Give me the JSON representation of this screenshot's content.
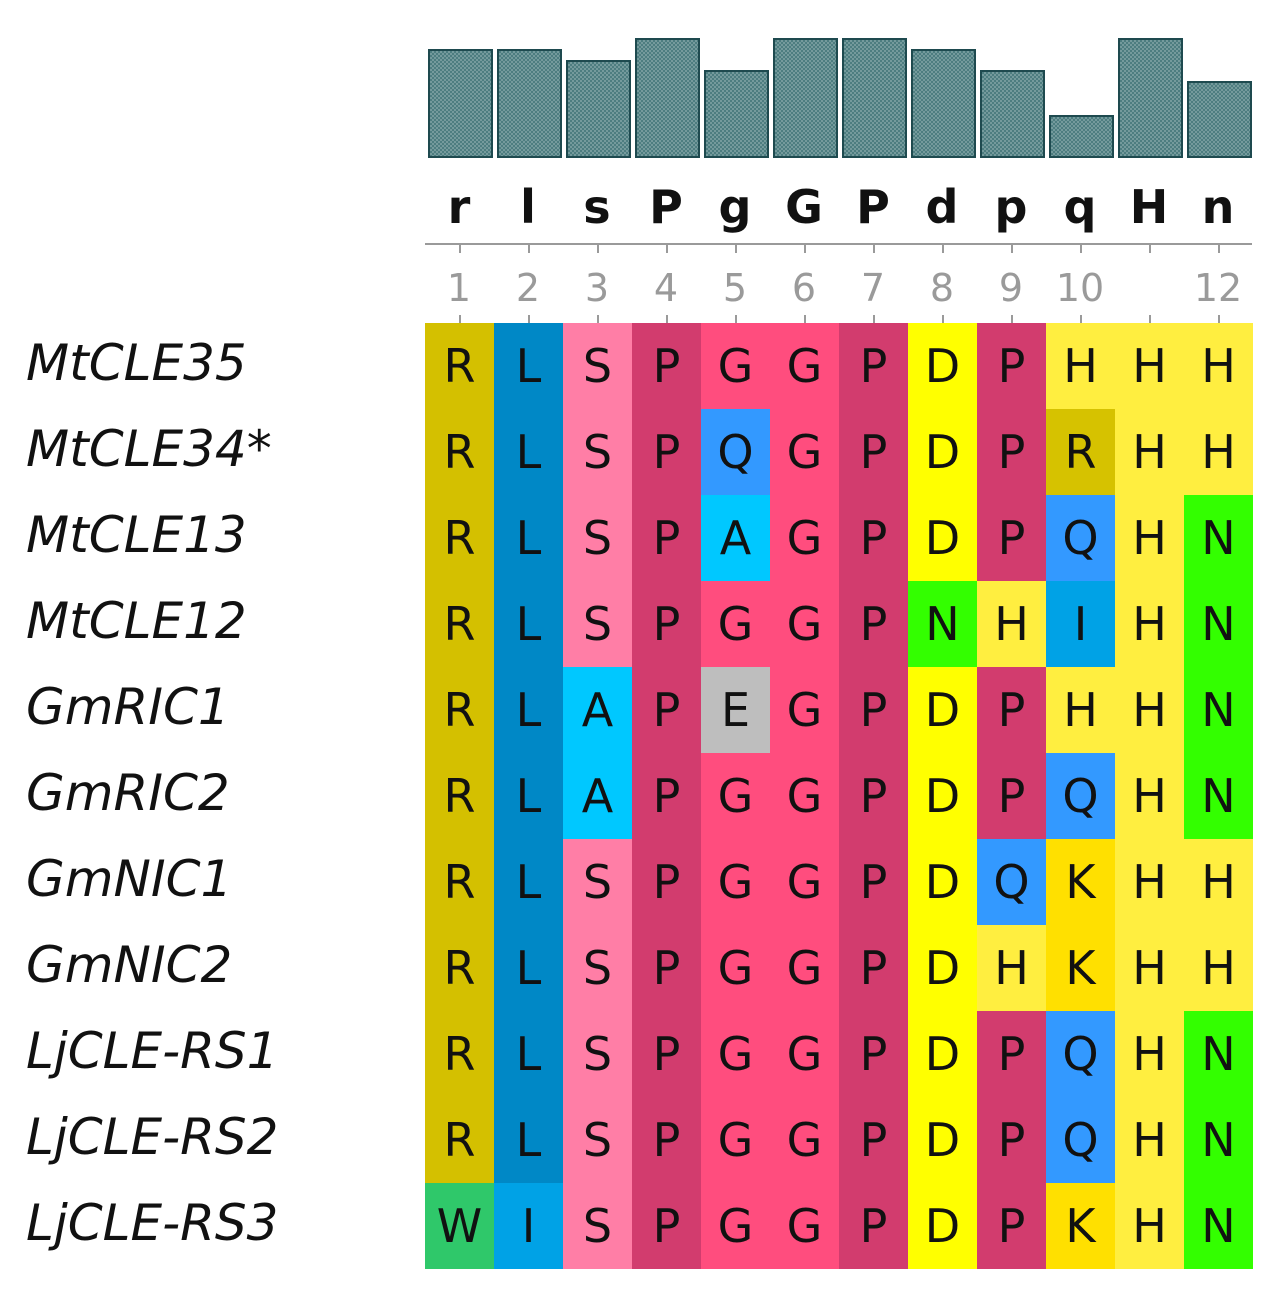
{
  "consensus": [
    "r",
    "l",
    "s",
    "P",
    "g",
    "G",
    "P",
    "d",
    "p",
    "q",
    "H",
    "n"
  ],
  "conservation": [
    0.78,
    0.78,
    0.7,
    0.86,
    0.63,
    0.86,
    0.86,
    0.78,
    0.63,
    0.31,
    0.86,
    0.55
  ],
  "positions": [
    "1",
    "2",
    "3",
    "4",
    "5",
    "6",
    "7",
    "8",
    "9",
    "10",
    "",
    "12"
  ],
  "colors": {
    "R": "#d4c000",
    "L": "#0088c6",
    "I": "#00a2e6",
    "W": "#2fc86a",
    "S": "#ff7ea6",
    "A": "#00c8ff",
    "P": "#d23c6e",
    "G": "#ff4d7e",
    "Q": "#3399ff",
    "E": "#bebebe",
    "D": "#ffff00",
    "H": "#ffee40",
    "N": "#33ff00",
    "K": "#ffe000",
    "Rq": "#d6c200",
    "bar_fill": "#4d7d80",
    "bar_border": "#1e4a4f",
    "axis": "#9a9a9a"
  },
  "sequences": [
    {
      "name": "MtCLE35",
      "residues": [
        "R",
        "L",
        "S",
        "P",
        "G",
        "G",
        "P",
        "D",
        "P",
        "H",
        "H",
        "H"
      ]
    },
    {
      "name": "MtCLE34*",
      "residues": [
        "R",
        "L",
        "S",
        "P",
        "Q",
        "G",
        "P",
        "D",
        "P",
        "R",
        "H",
        "H"
      ]
    },
    {
      "name": "MtCLE13",
      "residues": [
        "R",
        "L",
        "S",
        "P",
        "A",
        "G",
        "P",
        "D",
        "P",
        "Q",
        "H",
        "N"
      ]
    },
    {
      "name": "MtCLE12",
      "residues": [
        "R",
        "L",
        "S",
        "P",
        "G",
        "G",
        "P",
        "N",
        "H",
        "I",
        "H",
        "N"
      ]
    },
    {
      "name": "GmRIC1",
      "residues": [
        "R",
        "L",
        "A",
        "P",
        "E",
        "G",
        "P",
        "D",
        "P",
        "H",
        "H",
        "N"
      ]
    },
    {
      "name": "GmRIC2",
      "residues": [
        "R",
        "L",
        "A",
        "P",
        "G",
        "G",
        "P",
        "D",
        "P",
        "Q",
        "H",
        "N"
      ]
    },
    {
      "name": "GmNIC1",
      "residues": [
        "R",
        "L",
        "S",
        "P",
        "G",
        "G",
        "P",
        "D",
        "Q",
        "K",
        "H",
        "H"
      ]
    },
    {
      "name": "GmNIC2",
      "residues": [
        "R",
        "L",
        "S",
        "P",
        "G",
        "G",
        "P",
        "D",
        "H",
        "K",
        "H",
        "H"
      ]
    },
    {
      "name": "LjCLE-RS1",
      "residues": [
        "R",
        "L",
        "S",
        "P",
        "G",
        "G",
        "P",
        "D",
        "P",
        "Q",
        "H",
        "N"
      ]
    },
    {
      "name": "LjCLE-RS2",
      "residues": [
        "R",
        "L",
        "S",
        "P",
        "G",
        "G",
        "P",
        "D",
        "P",
        "Q",
        "H",
        "N"
      ]
    },
    {
      "name": "LjCLE-RS3",
      "residues": [
        "W",
        "I",
        "S",
        "P",
        "G",
        "G",
        "P",
        "D",
        "P",
        "K",
        "H",
        "N"
      ]
    }
  ]
}
